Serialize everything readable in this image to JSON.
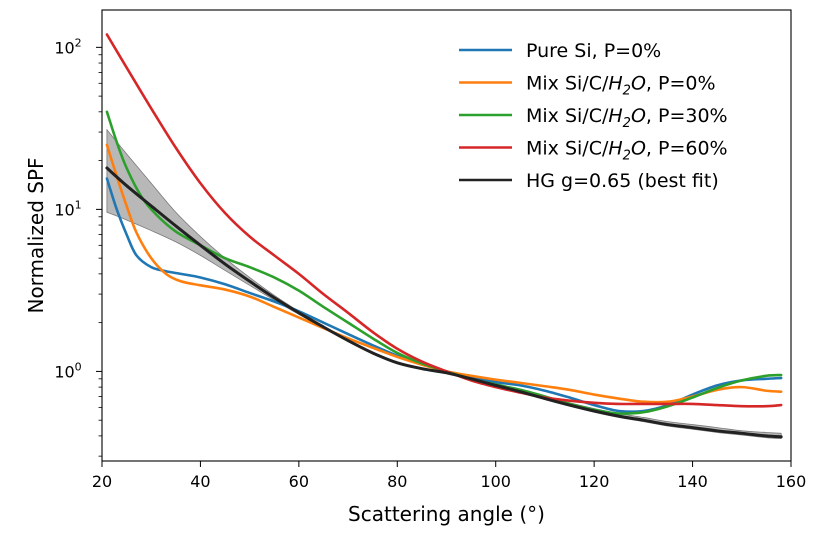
{
  "chart_data": {
    "type": "line",
    "title": "",
    "xlabel": "Scattering angle (°)",
    "ylabel": "Normalized SPF",
    "xlim": [
      20,
      160
    ],
    "ylim": [
      0.28,
      170
    ],
    "y_scale": "log",
    "x_ticks": [
      20,
      40,
      60,
      80,
      100,
      120,
      140,
      160
    ],
    "y_ticks": [
      {
        "value": 1,
        "label_base": "10",
        "label_exp": "0"
      },
      {
        "value": 10,
        "label_base": "10",
        "label_exp": "1"
      },
      {
        "value": 100,
        "label_base": "10",
        "label_exp": "2"
      }
    ],
    "grid": false,
    "legend_position": "top-right",
    "series": [
      {
        "name": "Pure Si, P=0%",
        "legend_prefix": "Pure Si, P=0%",
        "legend_italic": "",
        "legend_sub": "",
        "legend_italic2": "",
        "legend_suffix": "",
        "color": "#1f77b4",
        "x": [
          21,
          23,
          25,
          27,
          30,
          33,
          36,
          40,
          45,
          50,
          55,
          60,
          65,
          70,
          75,
          80,
          85,
          90,
          95,
          100,
          105,
          110,
          115,
          120,
          125,
          130,
          135,
          140,
          145,
          150,
          155,
          158
        ],
        "y": [
          15.5,
          10,
          7,
          5.2,
          4.4,
          4.15,
          4.0,
          3.8,
          3.45,
          3.05,
          2.7,
          2.35,
          2.0,
          1.7,
          1.45,
          1.25,
          1.12,
          1.0,
          0.92,
          0.86,
          0.82,
          0.76,
          0.69,
          0.62,
          0.57,
          0.57,
          0.62,
          0.72,
          0.82,
          0.88,
          0.9,
          0.91
        ]
      },
      {
        "name": "Mix Si/C/H2O, P=0%",
        "legend_prefix": "Mix Si/C/",
        "legend_italic": "H",
        "legend_sub": "2",
        "legend_italic2": "O",
        "legend_suffix": ", P=0%",
        "color": "#ff7f0e",
        "x": [
          21,
          23,
          25,
          27,
          30,
          33,
          36,
          40,
          45,
          50,
          55,
          60,
          65,
          70,
          75,
          80,
          85,
          90,
          95,
          100,
          105,
          110,
          115,
          120,
          125,
          130,
          135,
          140,
          145,
          150,
          155,
          158
        ],
        "y": [
          25,
          16,
          10.5,
          7.2,
          5.0,
          4.0,
          3.6,
          3.4,
          3.2,
          2.9,
          2.5,
          2.15,
          1.85,
          1.6,
          1.4,
          1.23,
          1.1,
          1.0,
          0.94,
          0.89,
          0.85,
          0.81,
          0.77,
          0.72,
          0.68,
          0.65,
          0.65,
          0.7,
          0.77,
          0.8,
          0.76,
          0.75
        ]
      },
      {
        "name": "Mix Si/C/H2O, P=30%",
        "legend_prefix": "Mix Si/C/",
        "legend_italic": "H",
        "legend_sub": "2",
        "legend_italic2": "O",
        "legend_suffix": ", P=30%",
        "color": "#2ca02c",
        "x": [
          21,
          23,
          25,
          28,
          31,
          35,
          40,
          45,
          50,
          55,
          60,
          65,
          70,
          75,
          80,
          85,
          90,
          95,
          100,
          105,
          110,
          115,
          120,
          125,
          130,
          135,
          140,
          145,
          150,
          155,
          158
        ],
        "y": [
          40,
          26,
          18,
          12,
          9.3,
          7.3,
          6.0,
          5.0,
          4.4,
          3.8,
          3.15,
          2.5,
          2.0,
          1.6,
          1.3,
          1.12,
          1.0,
          0.9,
          0.83,
          0.77,
          0.7,
          0.63,
          0.58,
          0.55,
          0.56,
          0.61,
          0.69,
          0.79,
          0.88,
          0.94,
          0.95
        ]
      },
      {
        "name": "Mix Si/C/H2O, P=60%",
        "legend_prefix": "Mix Si/C/",
        "legend_italic": "H",
        "legend_sub": "2",
        "legend_italic2": "O",
        "legend_suffix": ", P=60%",
        "color": "#d62728",
        "x": [
          21,
          25,
          30,
          35,
          40,
          45,
          50,
          55,
          60,
          65,
          70,
          75,
          80,
          85,
          90,
          95,
          100,
          105,
          110,
          115,
          120,
          125,
          130,
          135,
          140,
          145,
          150,
          155,
          158
        ],
        "y": [
          120,
          75,
          42,
          24,
          14.5,
          9.5,
          6.8,
          5.2,
          4.0,
          3.0,
          2.3,
          1.75,
          1.38,
          1.15,
          1.0,
          0.88,
          0.8,
          0.74,
          0.69,
          0.66,
          0.64,
          0.63,
          0.63,
          0.63,
          0.63,
          0.62,
          0.61,
          0.61,
          0.62
        ]
      },
      {
        "name": "HG g=0.65 (best fit)",
        "legend_prefix": "HG g=0.65 (best fit)",
        "legend_italic": "",
        "legend_sub": "",
        "legend_italic2": "",
        "legend_suffix": "",
        "color": "#222222",
        "x": [
          21,
          25,
          30,
          35,
          40,
          45,
          50,
          55,
          60,
          65,
          70,
          75,
          80,
          85,
          90,
          95,
          100,
          105,
          110,
          115,
          120,
          125,
          130,
          135,
          140,
          145,
          150,
          155,
          158
        ],
        "y": [
          18,
          14,
          10.5,
          7.9,
          6.0,
          4.6,
          3.6,
          2.85,
          2.3,
          1.88,
          1.55,
          1.3,
          1.13,
          1.04,
          0.98,
          0.9,
          0.82,
          0.75,
          0.68,
          0.62,
          0.57,
          0.53,
          0.5,
          0.47,
          0.45,
          0.43,
          0.415,
          0.4,
          0.395
        ],
        "band_upper": [
          31,
          22,
          14.5,
          9.6,
          6.8,
          5.0,
          3.8,
          2.95,
          2.35,
          1.9,
          1.57,
          1.31,
          1.14,
          1.05,
          0.99,
          0.91,
          0.83,
          0.76,
          0.7,
          0.64,
          0.59,
          0.55,
          0.52,
          0.49,
          0.47,
          0.45,
          0.43,
          0.42,
          0.415
        ],
        "band_lower": [
          9.6,
          8.6,
          7.4,
          6.3,
          5.2,
          4.2,
          3.4,
          2.75,
          2.25,
          1.85,
          1.53,
          1.29,
          1.12,
          1.03,
          0.97,
          0.89,
          0.81,
          0.74,
          0.67,
          0.61,
          0.56,
          0.52,
          0.49,
          0.46,
          0.44,
          0.42,
          0.405,
          0.39,
          0.385
        ]
      }
    ]
  }
}
